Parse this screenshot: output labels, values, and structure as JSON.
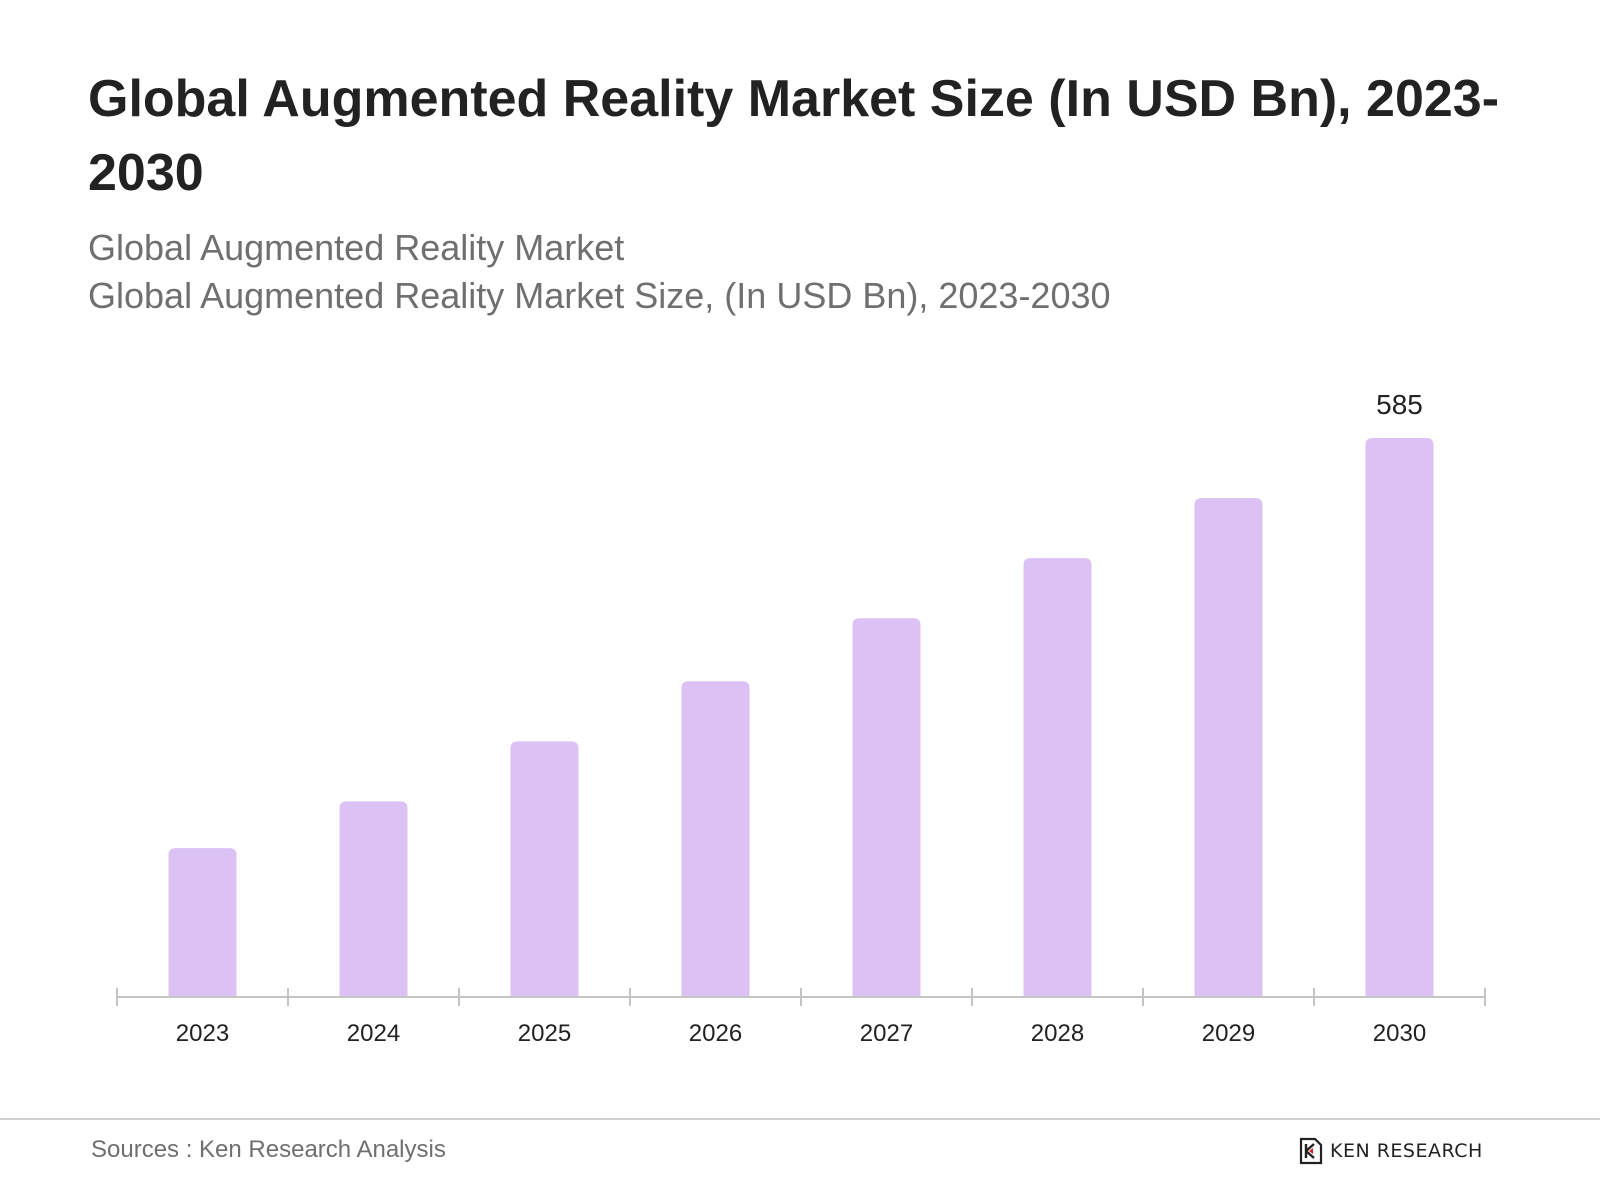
{
  "header": {
    "title": "Global Augmented Reality Market Size (In USD Bn), 2023-2030",
    "subtitle_line1": "Global Augmented Reality Market",
    "subtitle_line2": "Global Augmented Reality Market Size, (In USD Bn), 2023-2030"
  },
  "footer": {
    "source": "Sources : Ken Research Analysis",
    "logo_text": "KEN RESEARCH"
  },
  "colors": {
    "bar": "#dcc1f5",
    "axis": "#c4c4c4",
    "text": "#222222"
  },
  "chart_data": {
    "type": "bar",
    "title": "Global Augmented Reality Market Size, (In USD Bn), 2023-2030",
    "xlabel": "",
    "ylabel": "",
    "grid": false,
    "categories": [
      "2023",
      "2024",
      "2025",
      "2026",
      "2027",
      "2028",
      "2029",
      "2030"
    ],
    "values": [
      155,
      204,
      267,
      330,
      396,
      459,
      522,
      585
    ],
    "data_labels": [
      null,
      null,
      null,
      null,
      null,
      null,
      null,
      "585"
    ],
    "ylim": [
      0,
      585
    ]
  }
}
